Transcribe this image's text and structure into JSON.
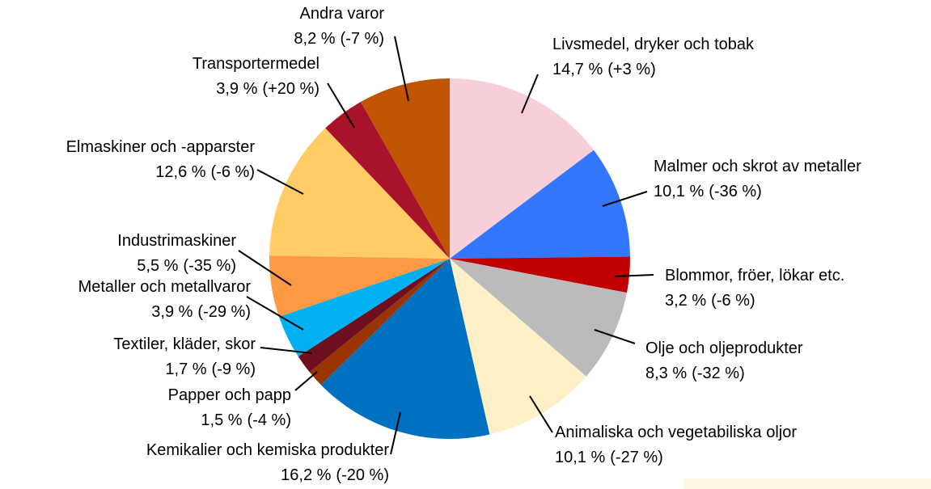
{
  "chart_data": {
    "type": "pie",
    "categories": [
      "Livsmedel, dryker och tobak",
      "Malmer och skrot av metaller",
      "Blommor, fröer, lökar etc.",
      "Olje och oljeprodukter",
      "Animaliska och vegetabiliska oljor",
      "Kemikalier och kemiska produkter",
      "Papper och papp",
      "Textiler, kläder, skor",
      "Metaller och metallvaror",
      "Industrimaskiner",
      "Elmaskiner och -apparster",
      "Transportermedel",
      "Andra varor"
    ],
    "values": [
      14.7,
      10.1,
      3.2,
      8.3,
      10.1,
      16.2,
      1.5,
      1.7,
      3.9,
      5.5,
      12.6,
      3.9,
      8.2
    ],
    "value_labels": [
      "14,7 %",
      "10,1 %",
      "3,2 %",
      "8,3 %",
      "10,1 %",
      "16,2 %",
      "1,5 %",
      "1,7 %",
      "3,9 %",
      "5,5 %",
      "12,6 %",
      "3,9 %",
      "8,2 %"
    ],
    "change_labels": [
      "(+3 %)",
      "(-36 %)",
      "(-6 %)",
      "(-32 %)",
      "(-27 %)",
      "(-20 %)",
      "(-4 %)",
      "(-9 %)",
      "(-29 %)",
      "(-35 %)",
      "(-6 %)",
      "(+20 %)",
      "(-7 %)"
    ],
    "colors": [
      "#f8cfd8",
      "#3377ff",
      "#c00000",
      "#bbbbbb",
      "#fff0c8",
      "#0070c0",
      "#993300",
      "#6e1020",
      "#00b0f0",
      "#ff9944",
      "#ffcc66",
      "#a8122a",
      "#bf5500"
    ]
  }
}
